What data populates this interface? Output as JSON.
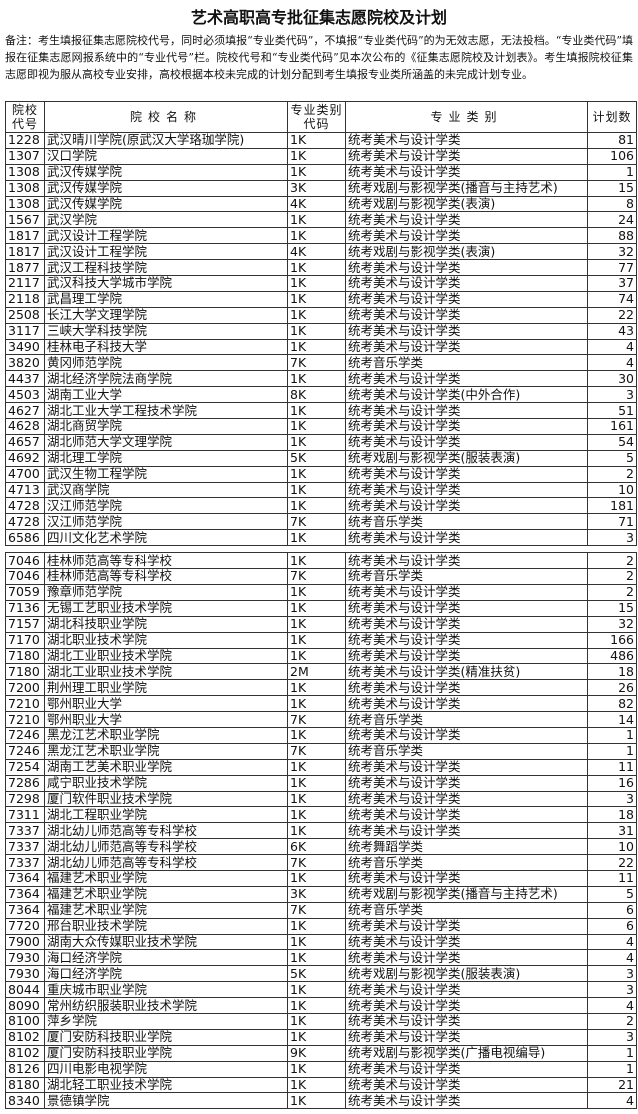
{
  "header": {
    "title": "艺术高职高专批征集志愿院校及计划",
    "note": "备注：考生填报征集志愿院校代号，同时必须填报“专业类代码”，不填报“专业类代码”的为无效志愿，无法投档。“专业类代码”填报在征集志愿网报系统中的“专业代号”栏。院校代号和“专业类代码”见本次公布的《征集志愿院校及计划表》。考生填报院校征集志愿即视为服从高校专业安排，高校根据本校未完成的计划分配到考生填报专业类所涵盖的未完成计划专业。"
  },
  "table": {
    "columns": [
      "院校代号",
      "院校名称",
      "专业类别代码",
      "专业类别",
      "计划数"
    ],
    "sections": [
      {
        "rows": [
          [
            "1228",
            "武汉晴川学院(原武汉大学珞珈学院)",
            "1K",
            "统考美术与设计学类",
            81
          ],
          [
            "1307",
            "汉口学院",
            "1K",
            "统考美术与设计学类",
            106
          ],
          [
            "1308",
            "武汉传媒学院",
            "1K",
            "统考美术与设计学类",
            1
          ],
          [
            "1308",
            "武汉传媒学院",
            "3K",
            "统考戏剧与影视学类(播音与主持艺术)",
            15
          ],
          [
            "1308",
            "武汉传媒学院",
            "4K",
            "统考戏剧与影视学类(表演)",
            8
          ],
          [
            "1567",
            "武汉学院",
            "1K",
            "统考美术与设计学类",
            24
          ],
          [
            "1817",
            "武汉设计工程学院",
            "1K",
            "统考美术与设计学类",
            88
          ],
          [
            "1817",
            "武汉设计工程学院",
            "4K",
            "统考戏剧与影视学类(表演)",
            32
          ],
          [
            "1877",
            "武汉工程科技学院",
            "1K",
            "统考美术与设计学类",
            77
          ],
          [
            "2117",
            "武汉科技大学城市学院",
            "1K",
            "统考美术与设计学类",
            37
          ],
          [
            "2118",
            "武昌理工学院",
            "1K",
            "统考美术与设计学类",
            74
          ],
          [
            "2508",
            "长江大学文理学院",
            "1K",
            "统考美术与设计学类",
            22
          ],
          [
            "3117",
            "三峡大学科技学院",
            "1K",
            "统考美术与设计学类",
            43
          ],
          [
            "3490",
            "桂林电子科技大学",
            "1K",
            "统考美术与设计学类",
            4
          ],
          [
            "3820",
            "黄冈师范学院",
            "7K",
            "统考音乐学类",
            4
          ],
          [
            "4437",
            "湖北经济学院法商学院",
            "1K",
            "统考美术与设计学类",
            30
          ],
          [
            "4503",
            "湖南工业大学",
            "8K",
            "统考美术与设计学类(中外合作)",
            3
          ],
          [
            "4627",
            "湖北工业大学工程技术学院",
            "1K",
            "统考美术与设计学类",
            51
          ],
          [
            "4628",
            "湖北商贸学院",
            "1K",
            "统考美术与设计学类",
            161
          ],
          [
            "4657",
            "湖北师范大学文理学院",
            "1K",
            "统考美术与设计学类",
            54
          ],
          [
            "4692",
            "湖北理工学院",
            "5K",
            "统考戏剧与影视学类(服装表演)",
            5
          ],
          [
            "4700",
            "武汉生物工程学院",
            "1K",
            "统考美术与设计学类",
            2
          ],
          [
            "4713",
            "武汉商学院",
            "1K",
            "统考美术与设计学类",
            10
          ],
          [
            "4728",
            "汉江师范学院",
            "1K",
            "统考美术与设计学类",
            181
          ],
          [
            "4728",
            "汉江师范学院",
            "7K",
            "统考音乐学类",
            71
          ],
          [
            "6586",
            "四川文化艺术学院",
            "1K",
            "统考美术与设计学类",
            3
          ]
        ]
      },
      {
        "rows": [
          [
            "7046",
            "桂林师范高等专科学校",
            "1K",
            "统考美术与设计学类",
            2
          ],
          [
            "7046",
            "桂林师范高等专科学校",
            "7K",
            "统考音乐学类",
            2
          ],
          [
            "7059",
            "豫章师范学院",
            "1K",
            "统考美术与设计学类",
            2
          ],
          [
            "7136",
            "无锡工艺职业技术学院",
            "1K",
            "统考美术与设计学类",
            15
          ],
          [
            "7157",
            "湖北科技职业学院",
            "1K",
            "统考美术与设计学类",
            32
          ],
          [
            "7170",
            "湖北职业技术学院",
            "1K",
            "统考美术与设计学类",
            166
          ],
          [
            "7180",
            "湖北工业职业技术学院",
            "1K",
            "统考美术与设计学类",
            486
          ],
          [
            "7180",
            "湖北工业职业技术学院",
            "2M",
            "统考美术与设计学类(精准扶贫)",
            18
          ],
          [
            "7200",
            "荆州理工职业学院",
            "1K",
            "统考美术与设计学类",
            26
          ],
          [
            "7210",
            "鄂州职业大学",
            "1K",
            "统考美术与设计学类",
            82
          ],
          [
            "7210",
            "鄂州职业大学",
            "7K",
            "统考音乐学类",
            14
          ],
          [
            "7246",
            "黑龙江艺术职业学院",
            "1K",
            "统考美术与设计学类",
            1
          ],
          [
            "7246",
            "黑龙江艺术职业学院",
            "7K",
            "统考音乐学类",
            1
          ],
          [
            "7254",
            "湖南工艺美术职业学院",
            "1K",
            "统考美术与设计学类",
            11
          ],
          [
            "7286",
            "咸宁职业技术学院",
            "1K",
            "统考美术与设计学类",
            16
          ],
          [
            "7298",
            "厦门软件职业技术学院",
            "1K",
            "统考美术与设计学类",
            3
          ],
          [
            "7311",
            "湖北工程职业学院",
            "1K",
            "统考美术与设计学类",
            18
          ],
          [
            "7337",
            "湖北幼儿师范高等专科学校",
            "1K",
            "统考美术与设计学类",
            31
          ],
          [
            "7337",
            "湖北幼儿师范高等专科学校",
            "6K",
            "统考舞蹈学类",
            10
          ],
          [
            "7337",
            "湖北幼儿师范高等专科学校",
            "7K",
            "统考音乐学类",
            22
          ],
          [
            "7364",
            "福建艺术职业学院",
            "1K",
            "统考美术与设计学类",
            11
          ],
          [
            "7364",
            "福建艺术职业学院",
            "3K",
            "统考戏剧与影视学类(播音与主持艺术)",
            5
          ],
          [
            "7364",
            "福建艺术职业学院",
            "7K",
            "统考音乐学类",
            6
          ],
          [
            "7720",
            "邢台职业技术学院",
            "1K",
            "统考美术与设计学类",
            6
          ],
          [
            "7900",
            "湖南大众传媒职业技术学院",
            "1K",
            "统考美术与设计学类",
            4
          ],
          [
            "7930",
            "海口经济学院",
            "1K",
            "统考美术与设计学类",
            4
          ],
          [
            "7930",
            "海口经济学院",
            "5K",
            "统考戏剧与影视学类(服装表演)",
            3
          ],
          [
            "8044",
            "重庆城市职业学院",
            "1K",
            "统考美术与设计学类",
            3
          ],
          [
            "8090",
            "常州纺织服装职业技术学院",
            "1K",
            "统考美术与设计学类",
            4
          ],
          [
            "8100",
            "萍乡学院",
            "1K",
            "统考美术与设计学类",
            2
          ],
          [
            "8102",
            "厦门安防科技职业学院",
            "1K",
            "统考美术与设计学类",
            3
          ],
          [
            "8102",
            "厦门安防科技职业学院",
            "9K",
            "统考戏剧与影视学类(广播电视编导)",
            1
          ],
          [
            "8126",
            "四川电影电视学院",
            "1K",
            "统考美术与设计学类",
            1
          ],
          [
            "8180",
            "湖北轻工职业技术学院",
            "1K",
            "统考美术与设计学类",
            21
          ],
          [
            "8340",
            "景德镇学院",
            "1K",
            "统考美术与设计学类",
            4
          ]
        ]
      }
    ]
  }
}
